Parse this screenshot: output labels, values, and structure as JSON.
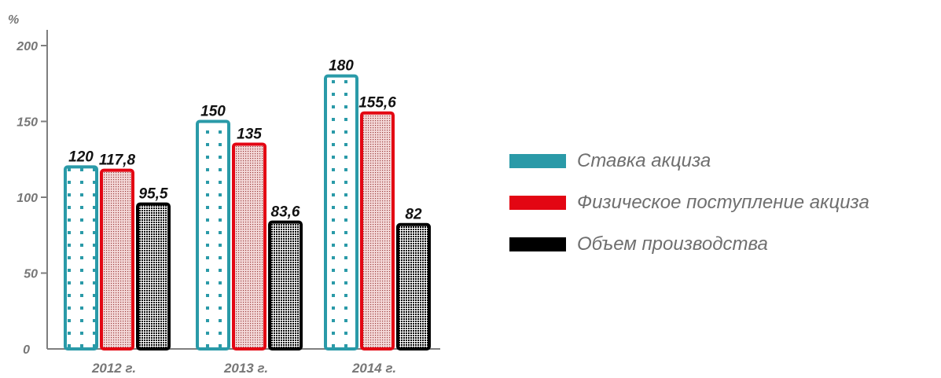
{
  "chart_data": {
    "type": "bar",
    "unit_label": "%",
    "categories": [
      "2012 г.",
      "2013 г.",
      "2014 г."
    ],
    "ylim": [
      0,
      200
    ],
    "yticks": [
      0,
      50,
      100,
      150,
      200
    ],
    "ytick_labels": [
      "0",
      "50",
      "100",
      "150",
      "200"
    ],
    "grid": false,
    "legend_position": "right",
    "series": [
      {
        "name": "Ставка акциза",
        "color": "#2a9aa8",
        "pattern": "dots",
        "values": [
          120,
          150,
          180
        ],
        "labels": [
          "120",
          "150",
          "180"
        ]
      },
      {
        "name": "Физическое поступление акциза",
        "color": "#e30613",
        "pattern": "fine-red",
        "values": [
          117.8,
          135,
          155.6
        ],
        "labels": [
          "117,8",
          "135",
          "155,6"
        ]
      },
      {
        "name": "Объем производства",
        "color": "#000000",
        "pattern": "dense-black",
        "values": [
          95.5,
          83.6,
          82
        ],
        "labels": [
          "95,5",
          "83,6",
          "82"
        ]
      }
    ]
  }
}
